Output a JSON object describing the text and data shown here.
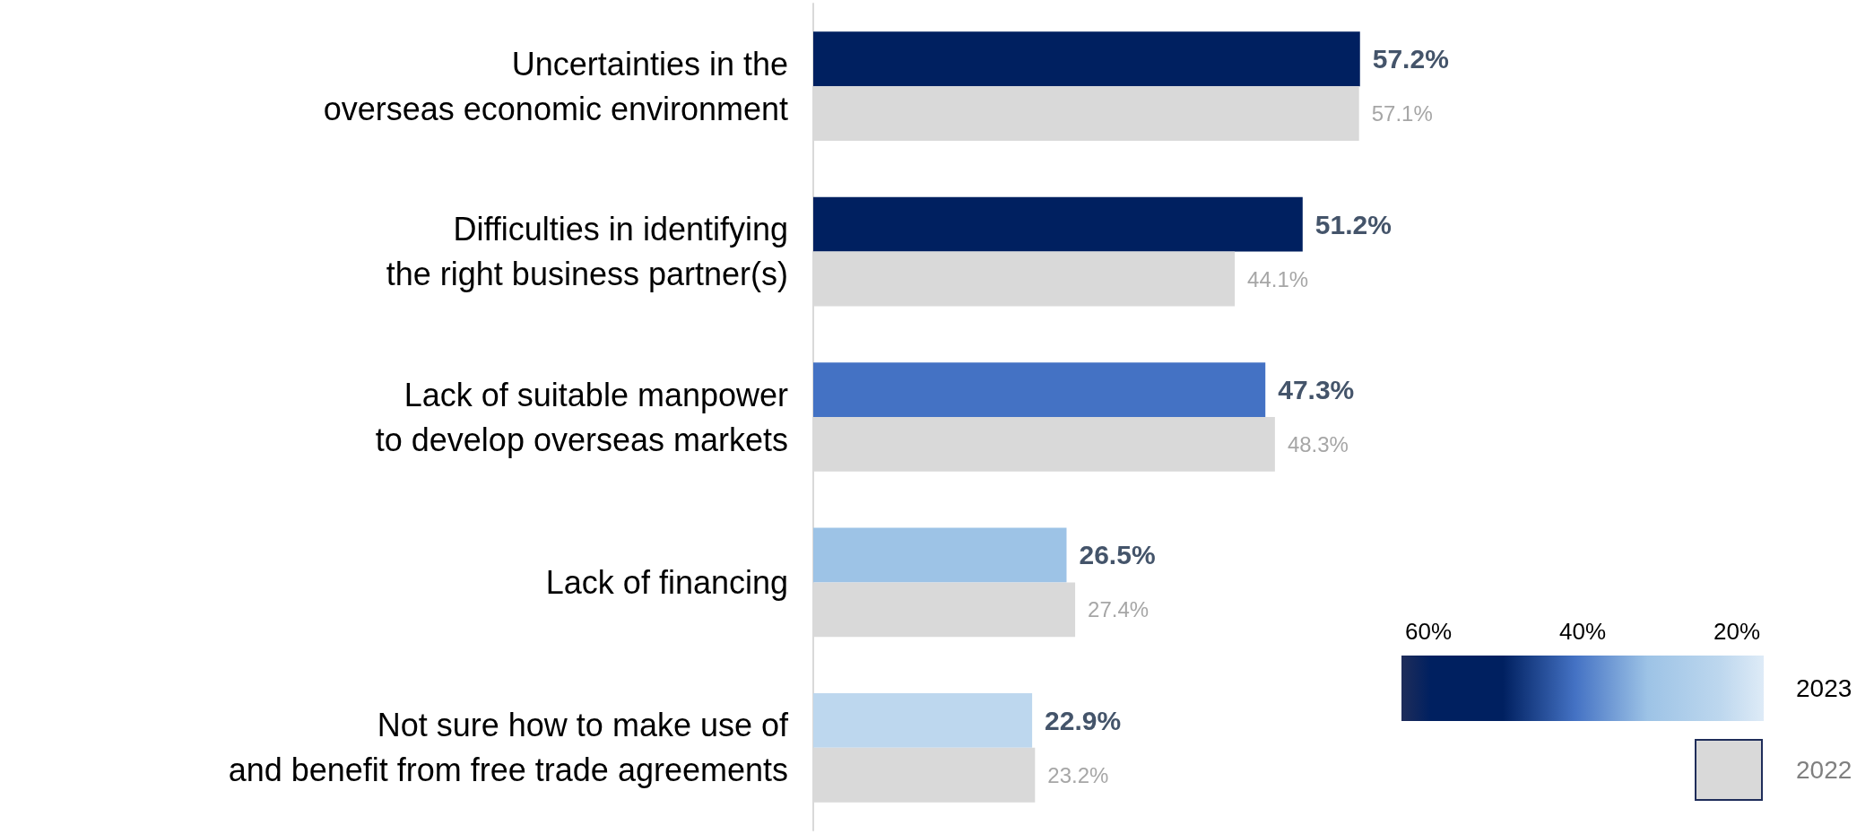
{
  "chart_data": {
    "type": "bar",
    "orientation": "horizontal",
    "categories": [
      "Uncertainties in the\noverseas economic environment",
      "Difficulties in identifying\nthe right business partner(s)",
      "Lack of suitable manpower\nto develop overseas markets",
      "Lack of financing",
      "Not sure how to make use of\nand benefit from free trade agreements"
    ],
    "series": [
      {
        "name": "2023",
        "colors": [
          "#002060",
          "#002060",
          "#4472c4",
          "#9dc3e6",
          "#bdd7ee"
        ],
        "values": [
          57.2,
          51.2,
          47.3,
          26.5,
          22.9
        ],
        "value_labels": [
          "57.2%",
          "51.2%",
          "47.3%",
          "26.5%",
          "22.9%"
        ]
      },
      {
        "name": "2022",
        "color": "#d9d9d9",
        "values": [
          57.1,
          44.1,
          48.3,
          27.4,
          23.2
        ],
        "value_labels": [
          "57.1%",
          "44.1%",
          "48.3%",
          "27.4%",
          "23.2%"
        ]
      }
    ],
    "xlim": [
      0,
      100
    ],
    "tick_labels": "y",
    "legend": "bottom right",
    "annotations": [
      "60%",
      "40%",
      "20%"
    ]
  }
}
